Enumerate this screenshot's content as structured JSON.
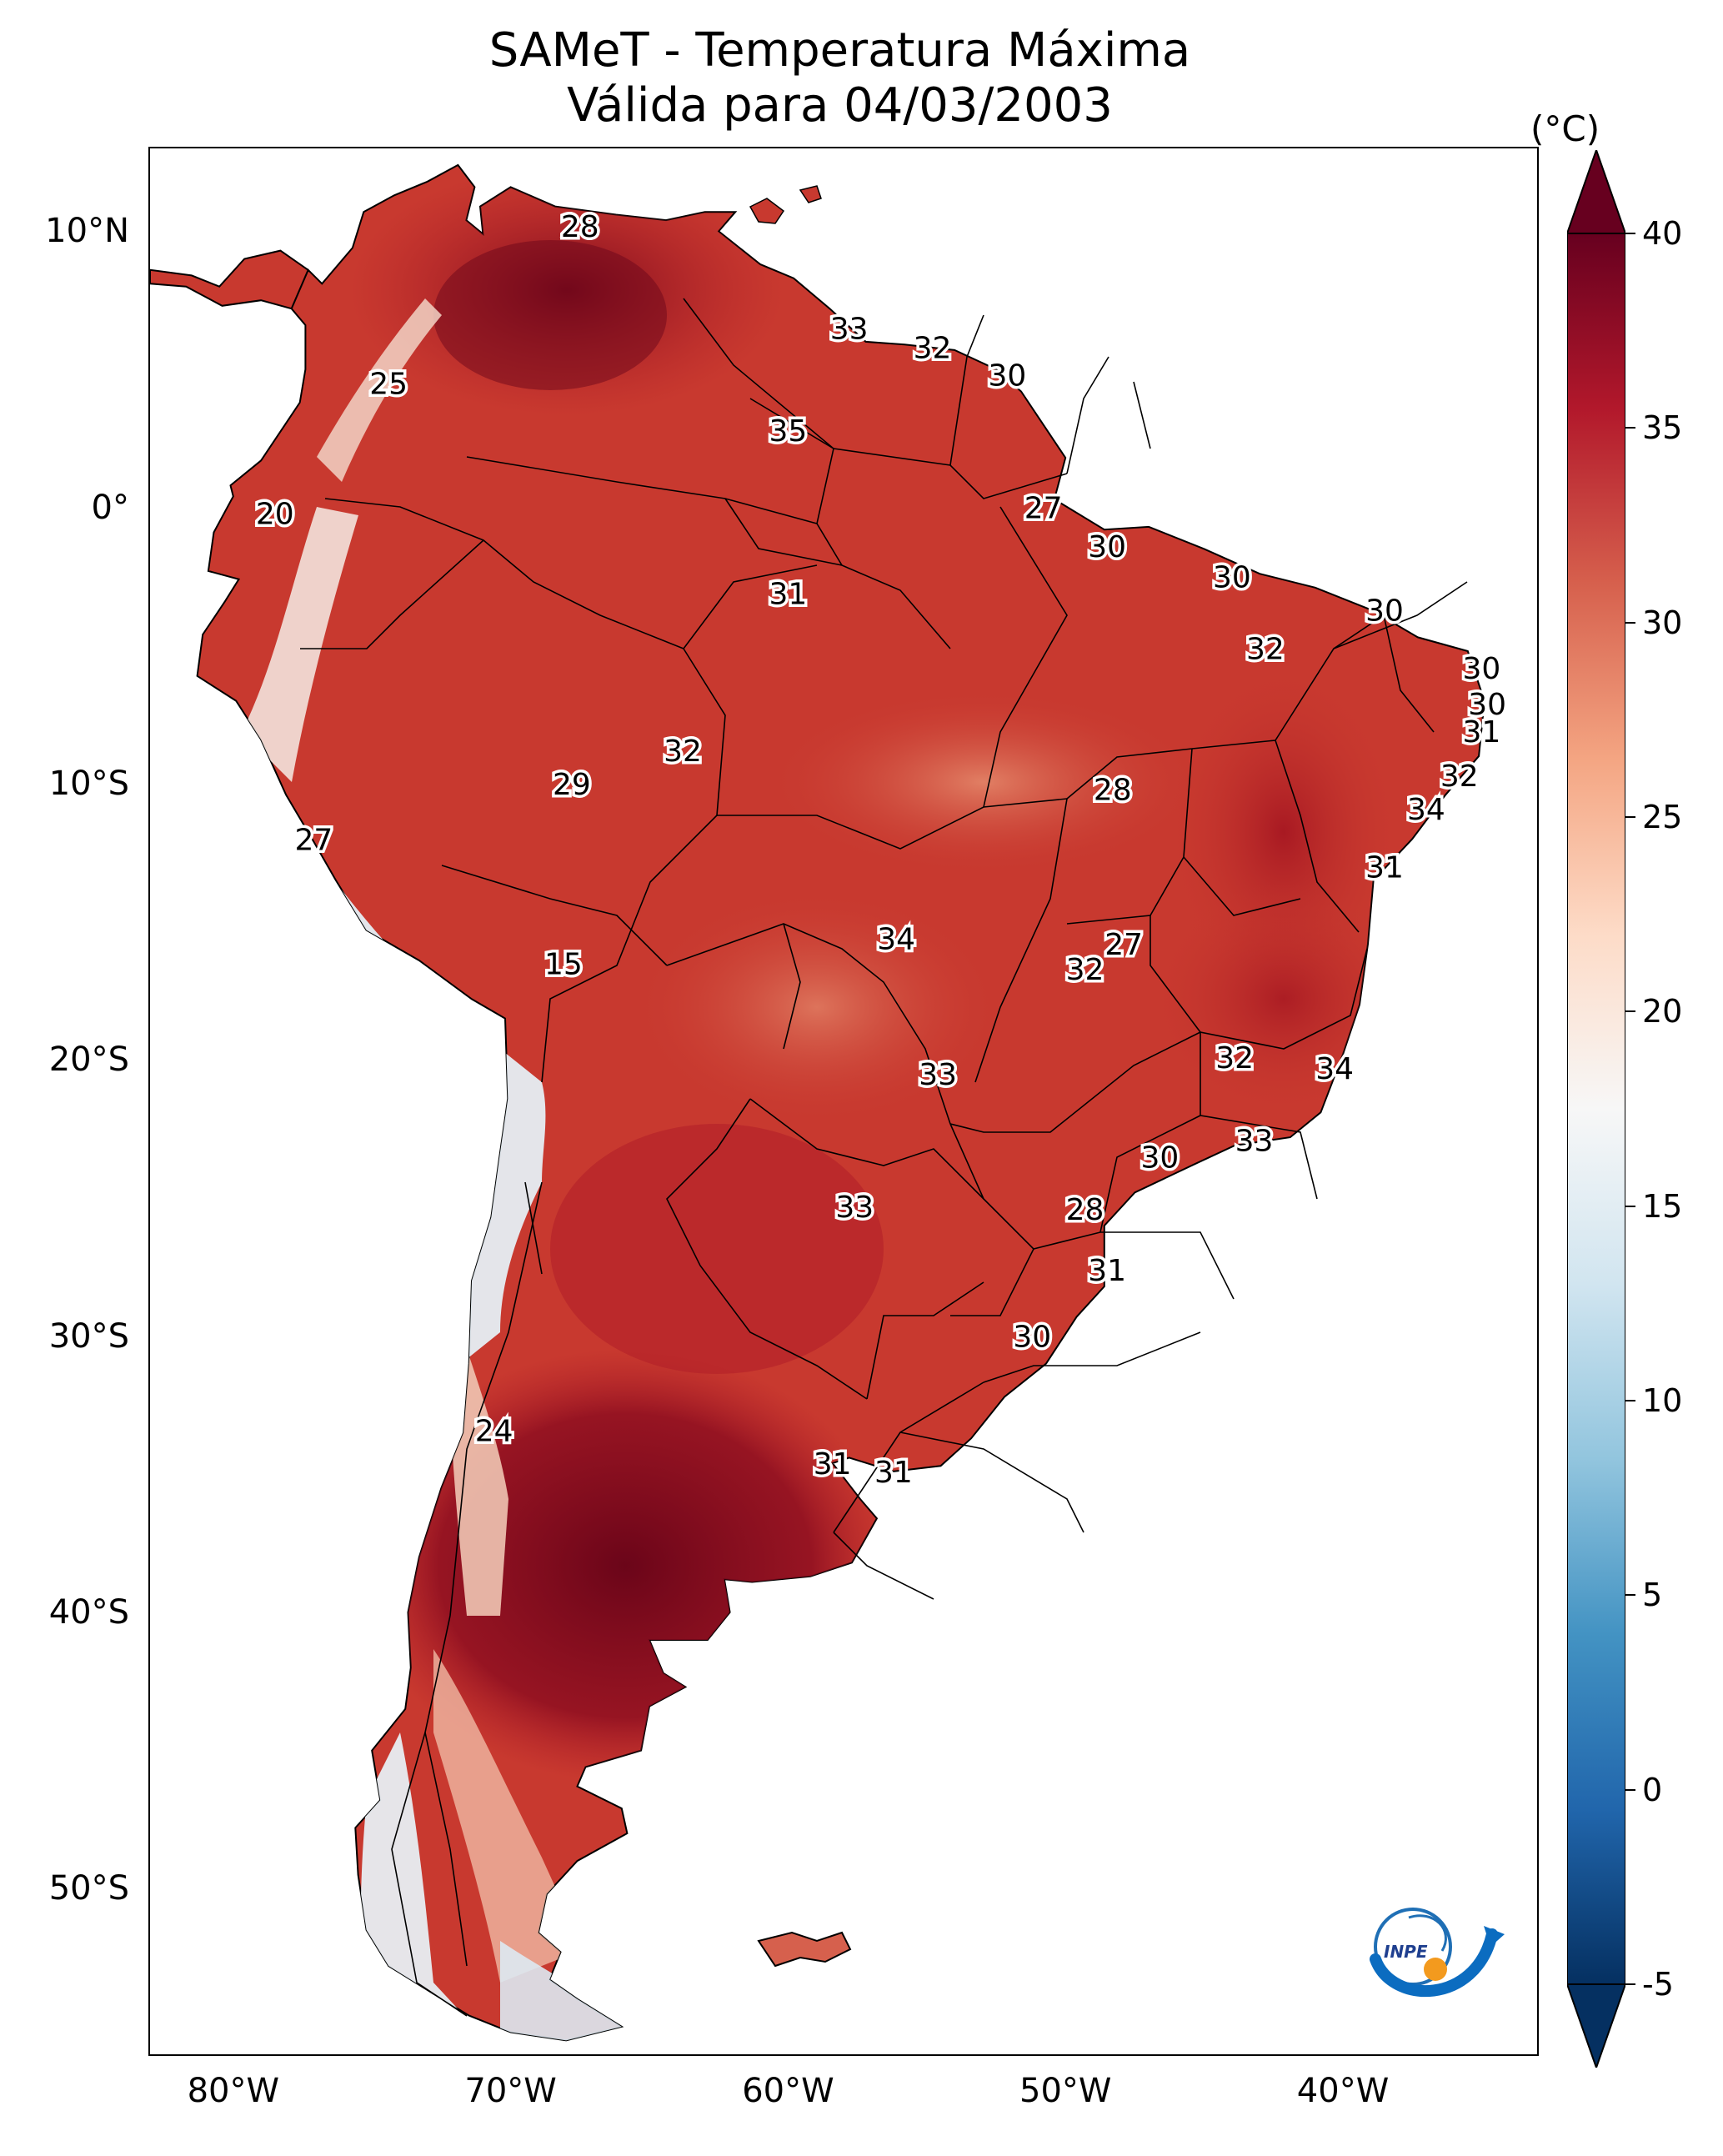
{
  "title": {
    "line1": "SAMeT - Temperatura Máxima",
    "line2": "Válida para 04/03/2003"
  },
  "axes": {
    "lat_ticks": [
      {
        "label": "10°N",
        "lat": 10
      },
      {
        "label": "0°",
        "lat": 0
      },
      {
        "label": "10°S",
        "lat": -10
      },
      {
        "label": "20°S",
        "lat": -20
      },
      {
        "label": "30°S",
        "lat": -30
      },
      {
        "label": "40°S",
        "lat": -40
      },
      {
        "label": "50°S",
        "lat": -50
      }
    ],
    "lon_ticks": [
      {
        "label": "80°W",
        "lon": -80
      },
      {
        "label": "70°W",
        "lon": -70
      },
      {
        "label": "60°W",
        "lon": -60
      },
      {
        "label": "50°W",
        "lon": -50
      },
      {
        "label": "40°W",
        "lon": -40
      }
    ],
    "lon_range": [
      -83,
      -33
    ],
    "lat_range": [
      -56,
      13
    ]
  },
  "colorbar": {
    "unit": "(°C)",
    "min": -5,
    "max": 40,
    "ticks": [
      "40",
      "35",
      "30",
      "25",
      "20",
      "15",
      "10",
      "5",
      "0",
      "-5"
    ],
    "tick_values": [
      40,
      35,
      30,
      25,
      20,
      15,
      10,
      5,
      0,
      -5
    ],
    "colormap": [
      "#053061",
      "#2166ac",
      "#4393c3",
      "#92c5de",
      "#d1e5f0",
      "#f7f7f7",
      "#fddbc7",
      "#f4a582",
      "#d6604d",
      "#b2182b",
      "#67001f"
    ]
  },
  "colors": {
    "land_base": "#c8392f",
    "land_warm": "#b01d28",
    "land_hot": "#8a0b1f",
    "land_mild": "#e07a5f",
    "andes_cool": "#d9e8f2",
    "andes_cold": "#a8cde3",
    "border": "#000000"
  },
  "city_values": [
    {
      "value": "28",
      "lon": -67.5,
      "lat": 10.2
    },
    {
      "value": "33",
      "lon": -57.8,
      "lat": 6.5
    },
    {
      "value": "32",
      "lon": -54.8,
      "lat": 5.8
    },
    {
      "value": "30",
      "lon": -52.1,
      "lat": 4.8
    },
    {
      "value": "25",
      "lon": -74.4,
      "lat": 4.5
    },
    {
      "value": "35",
      "lon": -60.0,
      "lat": 2.8
    },
    {
      "value": "27",
      "lon": -50.8,
      "lat": 0.0
    },
    {
      "value": "20",
      "lon": -78.5,
      "lat": -0.2
    },
    {
      "value": "30",
      "lon": -48.5,
      "lat": -1.4
    },
    {
      "value": "30",
      "lon": -44.0,
      "lat": -2.5
    },
    {
      "value": "31",
      "lon": -60.0,
      "lat": -3.1
    },
    {
      "value": "30",
      "lon": -38.5,
      "lat": -3.7
    },
    {
      "value": "32",
      "lon": -42.8,
      "lat": -5.1
    },
    {
      "value": "30",
      "lon": -35.0,
      "lat": -5.8
    },
    {
      "value": "30",
      "lon": -34.8,
      "lat": -7.1
    },
    {
      "value": "31",
      "lon": -35.0,
      "lat": -8.1
    },
    {
      "value": "32",
      "lon": -63.8,
      "lat": -8.8
    },
    {
      "value": "32",
      "lon": -35.8,
      "lat": -9.7
    },
    {
      "value": "29",
      "lon": -67.8,
      "lat": -10.0
    },
    {
      "value": "28",
      "lon": -48.3,
      "lat": -10.2
    },
    {
      "value": "34",
      "lon": -37.0,
      "lat": -10.9
    },
    {
      "value": "27",
      "lon": -77.1,
      "lat": -12.0
    },
    {
      "value": "31",
      "lon": -38.5,
      "lat": -13.0
    },
    {
      "value": "34",
      "lon": -56.1,
      "lat": -15.6
    },
    {
      "value": "27",
      "lon": -47.9,
      "lat": -15.8
    },
    {
      "value": "15",
      "lon": -68.1,
      "lat": -16.5
    },
    {
      "value": "32",
      "lon": -49.3,
      "lat": -16.7
    },
    {
      "value": "32",
      "lon": -43.9,
      "lat": -19.9
    },
    {
      "value": "34",
      "lon": -40.3,
      "lat": -20.3
    },
    {
      "value": "33",
      "lon": -54.6,
      "lat": -20.5
    },
    {
      "value": "33",
      "lon": -43.2,
      "lat": -22.9
    },
    {
      "value": "30",
      "lon": -46.6,
      "lat": -23.5
    },
    {
      "value": "33",
      "lon": -57.6,
      "lat": -25.3
    },
    {
      "value": "28",
      "lon": -49.3,
      "lat": -25.4
    },
    {
      "value": "31",
      "lon": -48.5,
      "lat": -27.6
    },
    {
      "value": "30",
      "lon": -51.2,
      "lat": -30.0
    },
    {
      "value": "24",
      "lon": -70.6,
      "lat": -33.4
    },
    {
      "value": "31",
      "lon": -58.4,
      "lat": -34.6
    },
    {
      "value": "31",
      "lon": -56.2,
      "lat": -34.9
    }
  ]
}
